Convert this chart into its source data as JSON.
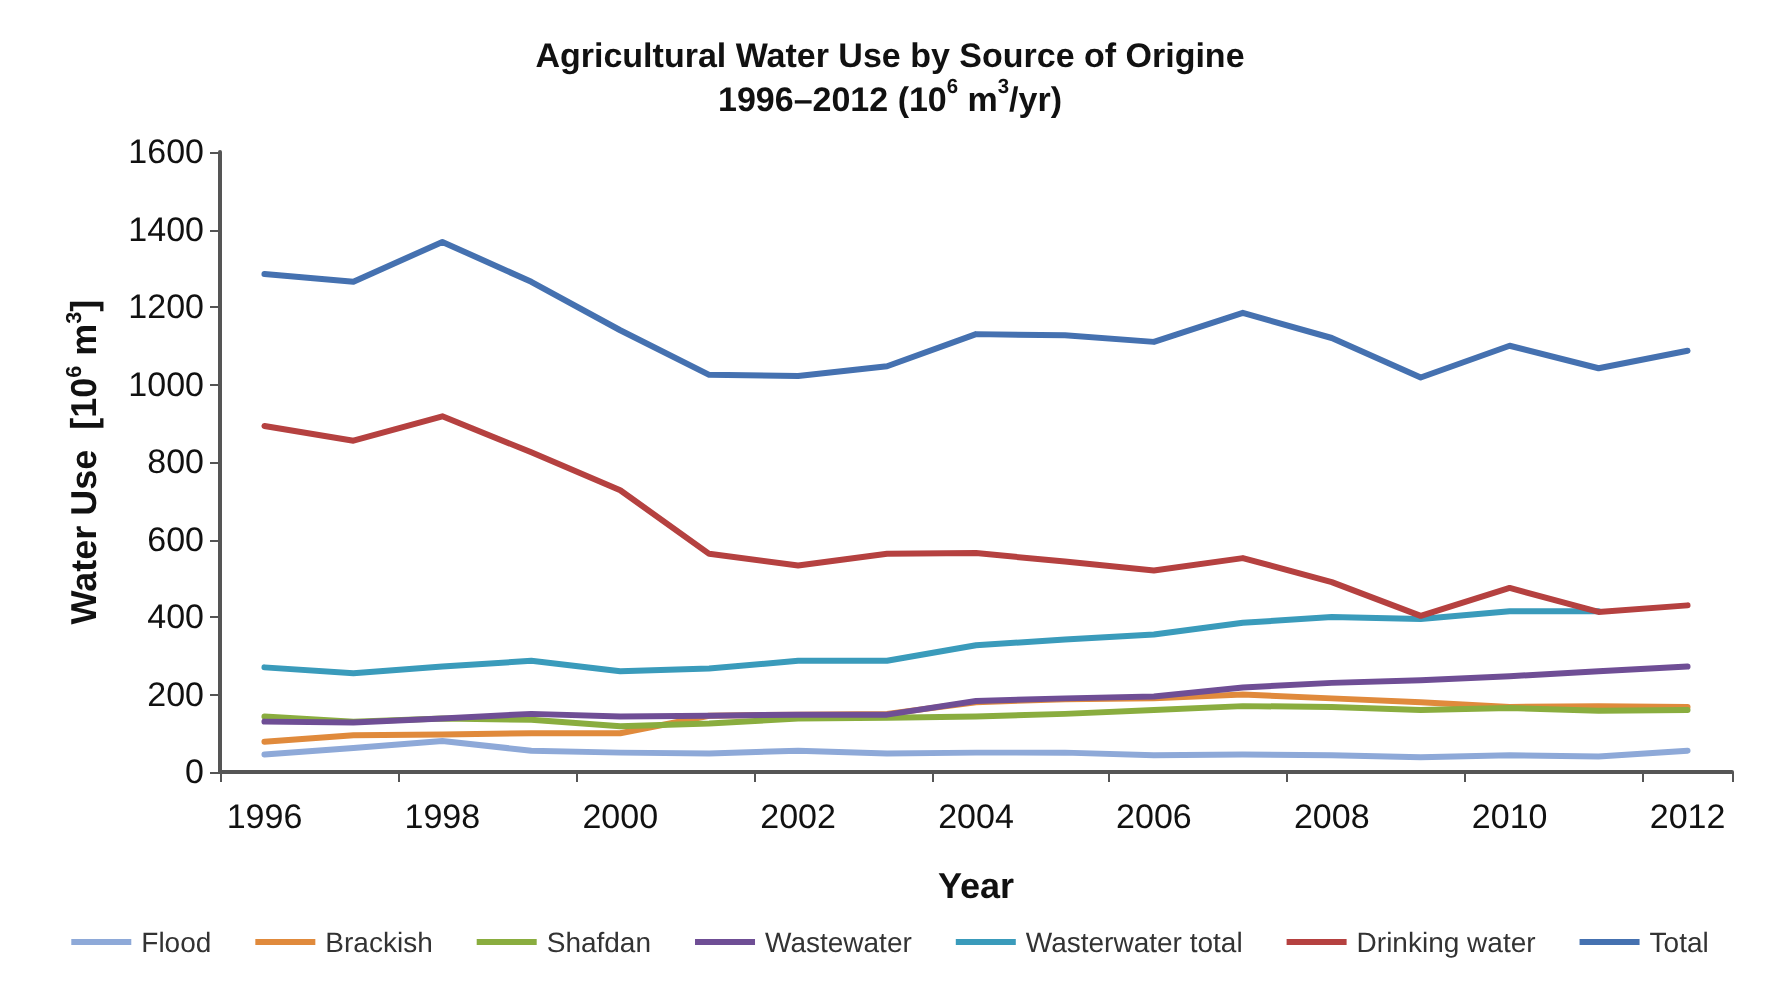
{
  "chart_data": {
    "type": "line",
    "title": "Agricultural Water Use by Source of Origine\n1996–2012 (10$^{6}$ m$^{3}$/yr)",
    "xlabel": "Year",
    "ylabel": "Water Use  [10$^{6}$ m$^{3}$]",
    "categories": [
      "1996",
      null,
      "1998",
      null,
      "2000",
      null,
      "2002",
      null,
      "2004",
      null,
      "2006",
      null,
      "2008",
      null,
      "2010",
      null,
      "2012"
    ],
    "ylim": [
      0,
      1600
    ],
    "yticks": [
      0,
      200,
      400,
      600,
      800,
      1000,
      1200,
      1400,
      1600
    ],
    "grid": false,
    "legend": "bottom",
    "marker": "none",
    "line_style": "solid",
    "series": [
      {
        "name": "Flood",
        "color": "#8ea9d8",
        "values": [
          45,
          62,
          80,
          55,
          50,
          48,
          55,
          48,
          50,
          50,
          43,
          45,
          43,
          38,
          43,
          40,
          55
        ]
      },
      {
        "name": "Brackish",
        "color": "#e08a3c",
        "values": [
          78,
          95,
          97,
          100,
          100,
          145,
          148,
          150,
          180,
          188,
          190,
          200,
          190,
          180,
          168,
          170,
          168
        ]
      },
      {
        "name": "Shafdan",
        "color": "#8aad3f",
        "values": [
          143,
          130,
          138,
          135,
          118,
          125,
          138,
          140,
          143,
          150,
          160,
          170,
          168,
          160,
          165,
          158,
          160
        ]
      },
      {
        "name": "Wastewater",
        "color": "#6f4e95",
        "values": [
          130,
          128,
          138,
          150,
          143,
          145,
          148,
          148,
          183,
          190,
          195,
          218,
          230,
          237,
          247,
          260,
          272
        ]
      },
      {
        "name": "Wasterwater total",
        "color": "#3a9bbb",
        "values": [
          270,
          255,
          272,
          287,
          260,
          267,
          287,
          287,
          327,
          342,
          355,
          385,
          400,
          395,
          415,
          415,
          null
        ]
      },
      {
        "name": "Drinking water",
        "color": "#b54140",
        "values": [
          893,
          855,
          918,
          825,
          727,
          563,
          533,
          563,
          565,
          543,
          520,
          552,
          490,
          403,
          475,
          413,
          430
        ]
      },
      {
        "name": "Total",
        "color": "#4571b0",
        "values": [
          1285,
          1265,
          1368,
          1265,
          1140,
          1025,
          1022,
          1047,
          1130,
          1127,
          1110,
          1185,
          1120,
          1018,
          1100,
          1042,
          1087
        ]
      }
    ]
  }
}
